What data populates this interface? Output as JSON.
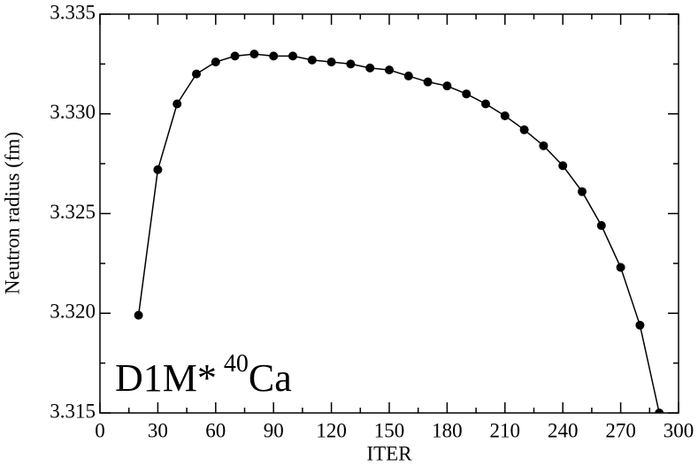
{
  "chart_data": {
    "type": "line",
    "x_label": "ITER",
    "y_label": "Neutron radius (fm)",
    "annotation": {
      "text": "D1M*",
      "superscript": "40",
      "base": "Ca"
    },
    "x": [
      20,
      30,
      40,
      50,
      60,
      70,
      80,
      90,
      100,
      110,
      120,
      130,
      140,
      150,
      160,
      170,
      180,
      190,
      200,
      210,
      220,
      230,
      240,
      250,
      260,
      270,
      280,
      290
    ],
    "series": [
      {
        "color": "#000000",
        "values": [
          3.3199,
          3.3272,
          3.3305,
          3.332,
          3.3326,
          3.3329,
          3.333,
          3.3329,
          3.3329,
          3.3327,
          3.3326,
          3.3325,
          3.3323,
          3.3322,
          3.3319,
          3.3316,
          3.3314,
          3.331,
          3.3305,
          3.3299,
          3.3292,
          3.3284,
          3.3274,
          3.3261,
          3.3244,
          3.3223,
          3.3194,
          3.315
        ]
      }
    ],
    "xlim": [
      0,
      300
    ],
    "xticks": [
      0,
      30,
      60,
      90,
      120,
      150,
      180,
      210,
      240,
      270,
      300
    ],
    "ylim": [
      3.315,
      3.335
    ],
    "yticks": [
      3.315,
      {
        "value": 3.32,
        "label": "3.320"
      },
      3.325,
      {
        "value": 3.33,
        "label": "3.330"
      },
      3.335
    ]
  }
}
